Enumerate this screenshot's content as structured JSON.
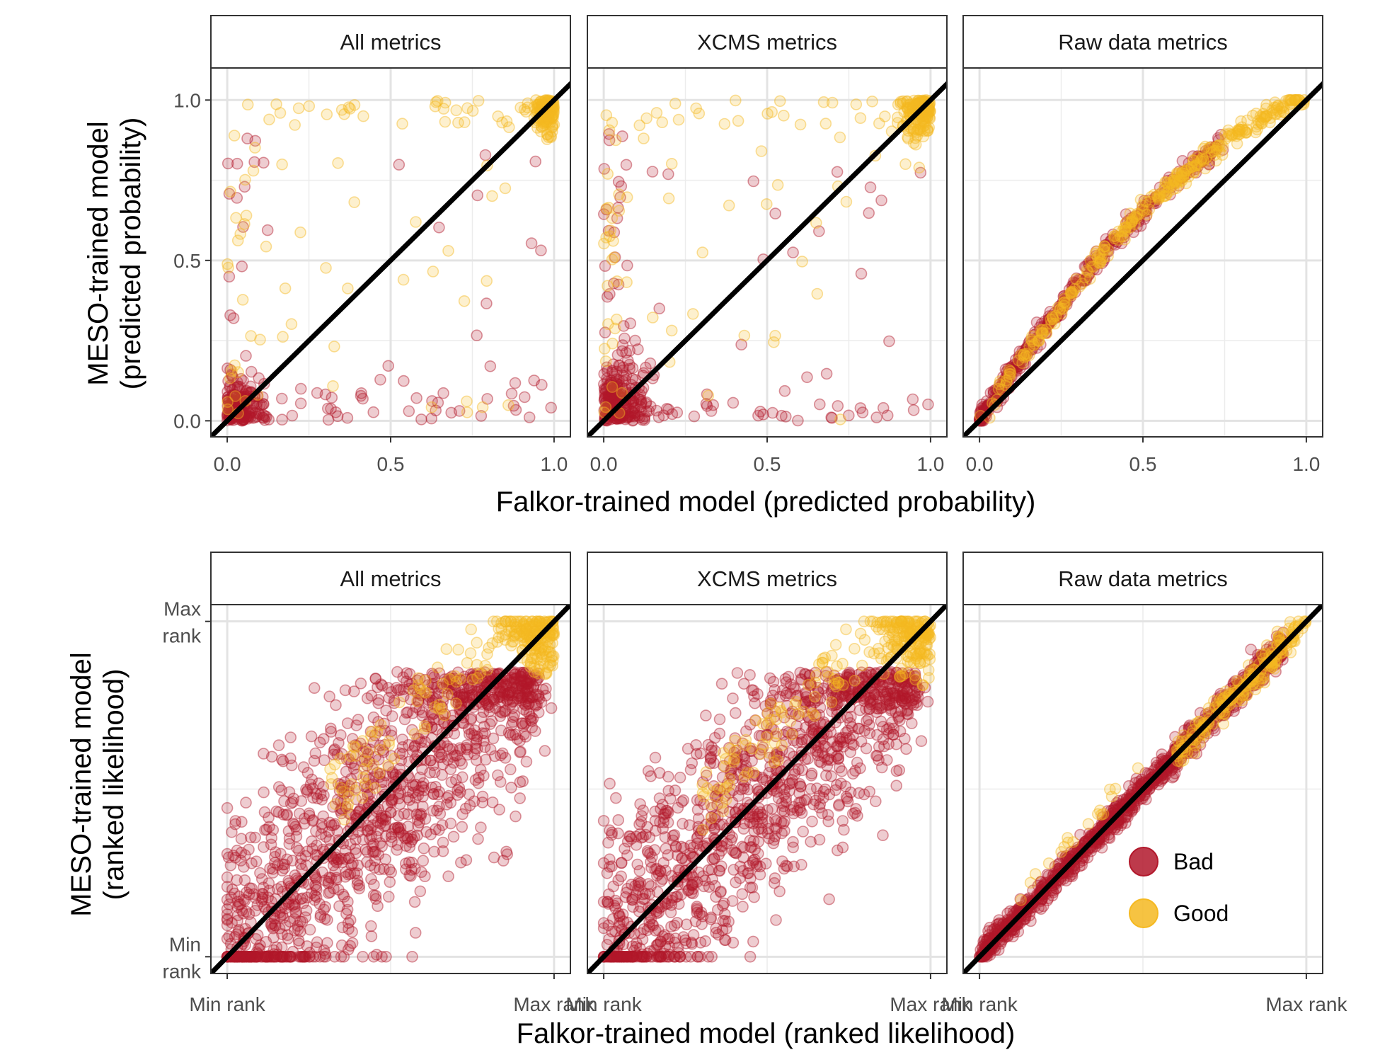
{
  "chart_data": [
    {
      "type": "scatter",
      "facets": [
        "All metrics",
        "XCMS metrics",
        "Raw data metrics"
      ],
      "xlabel": "Falkor-trained model (predicted probability)",
      "ylabel_lines": [
        "MESO-trained model",
        "(predicted probability)"
      ],
      "xlim": [
        -0.05,
        1.05
      ],
      "ylim": [
        -0.05,
        1.1
      ],
      "x_ticks": [
        {
          "value": 0,
          "label": "0.0"
        },
        {
          "value": 0.5,
          "label": "0.5"
        },
        {
          "value": 1,
          "label": "1.0"
        }
      ],
      "y_ticks": [
        {
          "value": 0,
          "label": "0.0"
        },
        {
          "value": 0.5,
          "label": "0.5"
        },
        {
          "value": 1,
          "label": "1.0"
        }
      ],
      "reference_line": "y = x",
      "panels": [
        {
          "facet": "All metrics",
          "pattern": "scattered",
          "bad": {
            "n": 260,
            "cluster": [
              0.0,
              0.0
            ],
            "spread": 0.12
          },
          "good": {
            "n": 230,
            "cluster": [
              1.0,
              1.0
            ],
            "spread": 0.12
          }
        },
        {
          "facet": "XCMS metrics",
          "pattern": "scattered",
          "bad": {
            "n": 300,
            "cluster": [
              0.0,
              0.0
            ],
            "spread": 0.18
          },
          "good": {
            "n": 240,
            "cluster": [
              1.0,
              1.0
            ],
            "spread": 0.14
          }
        },
        {
          "facet": "Raw data metrics",
          "pattern": "curve_above_diagonal",
          "bad": {
            "n": 420,
            "x_range": [
              0,
              0.75
            ]
          },
          "good": {
            "n": 300,
            "x_range": [
              0,
              1.0
            ]
          }
        }
      ]
    },
    {
      "type": "scatter",
      "facets": [
        "All metrics",
        "XCMS metrics",
        "Raw data metrics"
      ],
      "xlabel": "Falkor-trained model (ranked likelihood)",
      "ylabel_lines": [
        "MESO-trained model",
        "(ranked likelihood)"
      ],
      "xlim": [
        -0.05,
        1.05
      ],
      "ylim": [
        -0.05,
        1.05
      ],
      "x_ticks": [
        {
          "value": 0,
          "label": "Min rank"
        },
        {
          "value": 1,
          "label": "Max rank"
        }
      ],
      "y_ticks": [
        {
          "value": 0,
          "label_lines": [
            "Min",
            "rank"
          ]
        },
        {
          "value": 1,
          "label_lines": [
            "Max",
            "rank"
          ]
        }
      ],
      "reference_line": "y = x",
      "panels": [
        {
          "facet": "All metrics",
          "pattern": "wide_band",
          "bad": {
            "n": 1300,
            "band": 0.55
          },
          "good": {
            "n": 260,
            "x_range": [
              0.3,
              1.0
            ],
            "offset": 0.1
          }
        },
        {
          "facet": "XCMS metrics",
          "pattern": "wide_band",
          "bad": {
            "n": 1200,
            "band": 0.5
          },
          "good": {
            "n": 260,
            "x_range": [
              0.3,
              1.0
            ],
            "offset": 0.1
          }
        },
        {
          "facet": "Raw data metrics",
          "pattern": "tight_diagonal",
          "bad": {
            "n": 1100,
            "band": 0.02
          },
          "good": {
            "n": 200,
            "x_range": [
              0.6,
              1.0
            ],
            "band": 0.02
          }
        }
      ]
    }
  ],
  "legend": {
    "items": [
      {
        "label": "Bad",
        "color": "#b2182b"
      },
      {
        "label": "Good",
        "color": "#f5b921"
      }
    ],
    "position": "inside-bottom-right of last panel"
  },
  "colors": {
    "bad": "#b2182b",
    "good": "#f5b921",
    "reference_line": "#000000"
  }
}
